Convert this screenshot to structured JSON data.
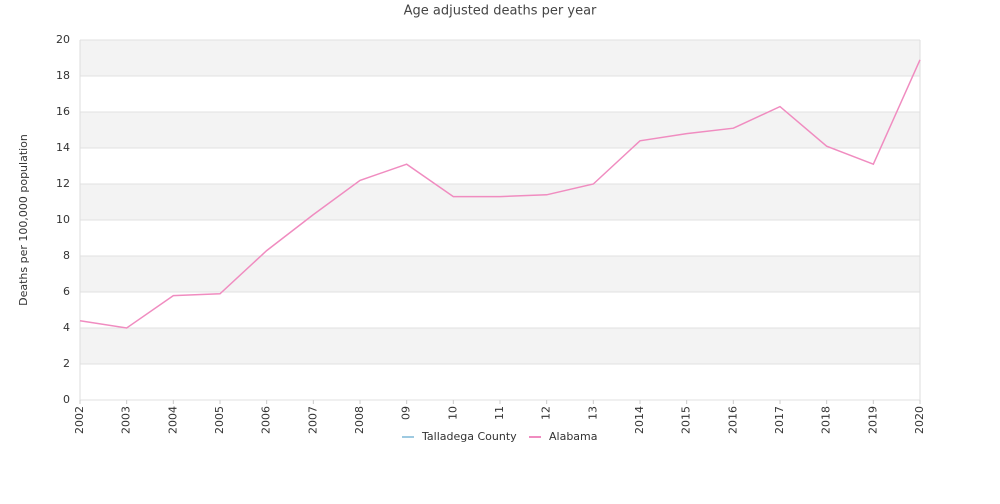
{
  "chart_data": {
    "type": "line",
    "title": "Age adjusted deaths per year",
    "y_label": "Deaths per 100,000 population",
    "categories": [
      "2002",
      "2003",
      "2004",
      "2005",
      "2006",
      "2007",
      "2008",
      "09",
      "10",
      "11",
      "12",
      "13",
      "2014",
      "2015",
      "2016",
      "2017",
      "2018",
      "2019",
      "2020"
    ],
    "series": [
      {
        "name": "Talladega County",
        "color": "#9ecae1",
        "values": [
          null,
          null,
          null,
          null,
          null,
          null,
          null,
          null,
          null,
          null,
          null,
          null,
          null,
          null,
          null,
          null,
          null,
          null,
          null
        ]
      },
      {
        "name": "Alabama",
        "color": "#f08cc0",
        "values": [
          4.4,
          4.0,
          5.8,
          5.9,
          8.3,
          10.3,
          12.2,
          13.1,
          11.3,
          11.3,
          11.4,
          12.0,
          14.4,
          14.8,
          15.1,
          16.3,
          14.1,
          13.1,
          18.9
        ]
      }
    ],
    "ylim": [
      0,
      20
    ],
    "yticks": [
      0,
      2,
      4,
      6,
      8,
      10,
      12,
      14,
      16,
      18,
      20
    ],
    "grid": true,
    "legend": "bottom"
  }
}
